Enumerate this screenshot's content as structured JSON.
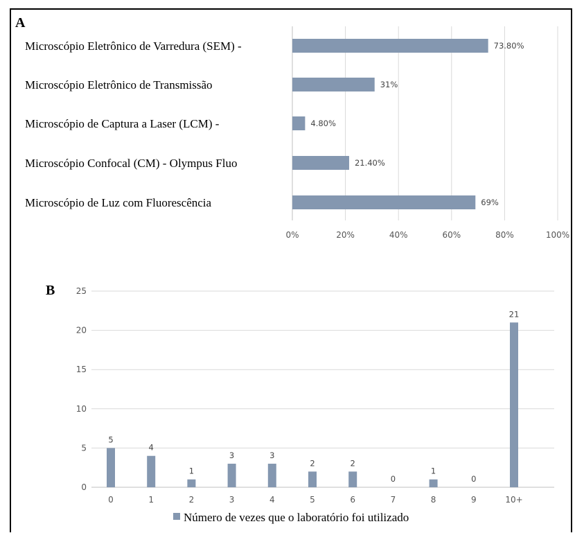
{
  "colors": {
    "bar": "#8497b0",
    "grid": "#d9d9d9",
    "axis": "#bfbfbf",
    "text": "#000000",
    "tick": "#595959"
  },
  "chart_data": [
    {
      "panel": "A",
      "type": "bar",
      "orientation": "horizontal",
      "categories": [
        "Microscópio Eletrônico de Varredura (SEM) -",
        "Microscópio Eletrônico de Transmissão",
        "Microscópio de Captura a Laser (LCM) -",
        "Microscópio Confocal (CM) - Olympus Fluo",
        "Microscópio de Luz com Fluorescência"
      ],
      "values": [
        73.8,
        31,
        4.8,
        21.4,
        69
      ],
      "data_labels": [
        "73.80%",
        "31%",
        "4.80%",
        "21.40%",
        "69%"
      ],
      "xlim": [
        0,
        100
      ],
      "xticks": [
        "0%",
        "20%",
        "40%",
        "60%",
        "80%",
        "100%"
      ],
      "grid": "vertical"
    },
    {
      "panel": "B",
      "type": "bar",
      "orientation": "vertical",
      "categories": [
        "0",
        "1",
        "2",
        "3",
        "4",
        "5",
        "6",
        "7",
        "8",
        "9",
        "10+"
      ],
      "values": [
        5,
        4,
        1,
        3,
        3,
        2,
        2,
        0,
        1,
        0,
        21
      ],
      "data_labels": [
        "5",
        "4",
        "1",
        "3",
        "3",
        "2",
        "2",
        "0",
        "1",
        "0",
        "21"
      ],
      "ylim": [
        0,
        25
      ],
      "yticks": [
        "0",
        "5",
        "10",
        "15",
        "20",
        "25"
      ],
      "grid": "horizontal",
      "legend": {
        "position": "bottom",
        "entries": [
          "Número de vezes que o laboratório foi utilizado"
        ]
      }
    }
  ]
}
